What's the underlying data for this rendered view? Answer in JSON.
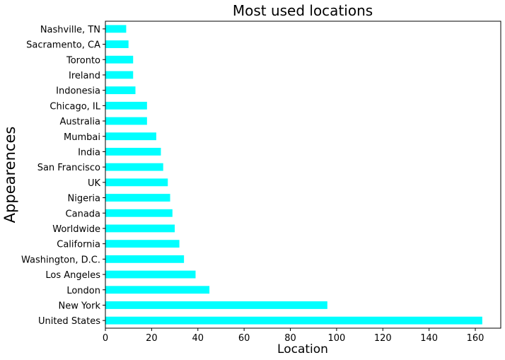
{
  "chart_data": {
    "type": "bar",
    "orientation": "horizontal",
    "title": "Most used locations",
    "xlabel": "Location",
    "ylabel": "Appearences",
    "xlim": [
      0,
      171
    ],
    "xticks": [
      0,
      20,
      40,
      60,
      80,
      100,
      120,
      140,
      160
    ],
    "grid": false,
    "bar_color": "#00ffff",
    "categories": [
      "United States",
      "New York",
      "London",
      "Los Angeles",
      "Washington, D.C.",
      "California",
      "Worldwide",
      "Canada",
      "Nigeria",
      "UK",
      "San Francisco",
      "India",
      "Mumbai",
      "Australia",
      "Chicago, IL",
      "Indonesia",
      "Ireland",
      "Toronto",
      "Sacramento, CA",
      "Nashville, TN"
    ],
    "values": [
      163,
      96,
      45,
      39,
      34,
      32,
      30,
      29,
      28,
      27,
      25,
      24,
      22,
      18,
      18,
      13,
      12,
      12,
      10,
      9
    ]
  }
}
